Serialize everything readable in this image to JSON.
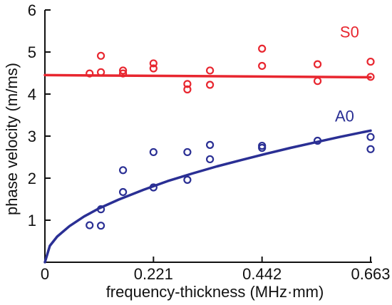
{
  "chart_data": {
    "type": "scatter",
    "title": "",
    "xlabel": "frequency-thickness (MHz·mm)",
    "ylabel": "phase velocity (m/ms)",
    "xlim": [
      0,
      0.663
    ],
    "ylim": [
      0,
      6
    ],
    "x_ticks": [
      "0",
      "0.221",
      "0.442",
      "0.663"
    ],
    "y_ticks": [
      "1",
      "2",
      "3",
      "4",
      "5",
      "6"
    ],
    "grid": false,
    "series": [
      {
        "name": "S0",
        "color": "#e8262f",
        "points": [
          {
            "x": 0.091,
            "y": 4.49
          },
          {
            "x": 0.114,
            "y": 4.91
          },
          {
            "x": 0.114,
            "y": 4.52
          },
          {
            "x": 0.159,
            "y": 4.56
          },
          {
            "x": 0.159,
            "y": 4.49
          },
          {
            "x": 0.221,
            "y": 4.73
          },
          {
            "x": 0.221,
            "y": 4.61
          },
          {
            "x": 0.29,
            "y": 4.24
          },
          {
            "x": 0.29,
            "y": 4.11
          },
          {
            "x": 0.336,
            "y": 4.56
          },
          {
            "x": 0.336,
            "y": 4.22
          },
          {
            "x": 0.442,
            "y": 5.08
          },
          {
            "x": 0.442,
            "y": 4.67
          },
          {
            "x": 0.555,
            "y": 4.71
          },
          {
            "x": 0.555,
            "y": 4.31
          },
          {
            "x": 0.663,
            "y": 4.77
          },
          {
            "x": 0.663,
            "y": 4.41
          }
        ],
        "fit": [
          {
            "x": 0.0,
            "y": 4.45
          },
          {
            "x": 0.663,
            "y": 4.4
          }
        ]
      },
      {
        "name": "A0",
        "color": "#2a2f94",
        "points": [
          {
            "x": 0.091,
            "y": 0.88
          },
          {
            "x": 0.114,
            "y": 1.26
          },
          {
            "x": 0.114,
            "y": 0.87
          },
          {
            "x": 0.159,
            "y": 2.19
          },
          {
            "x": 0.159,
            "y": 1.67
          },
          {
            "x": 0.221,
            "y": 2.62
          },
          {
            "x": 0.221,
            "y": 1.78
          },
          {
            "x": 0.29,
            "y": 2.62
          },
          {
            "x": 0.29,
            "y": 1.96
          },
          {
            "x": 0.336,
            "y": 2.79
          },
          {
            "x": 0.336,
            "y": 2.45
          },
          {
            "x": 0.442,
            "y": 2.77
          },
          {
            "x": 0.442,
            "y": 2.72
          },
          {
            "x": 0.555,
            "y": 2.89
          },
          {
            "x": 0.663,
            "y": 2.98
          },
          {
            "x": 0.663,
            "y": 2.69
          }
        ],
        "fit": [
          {
            "x": 0.0,
            "y": 0.0
          },
          {
            "x": 0.01,
            "y": 0.39
          },
          {
            "x": 0.025,
            "y": 0.61
          },
          {
            "x": 0.05,
            "y": 0.86
          },
          {
            "x": 0.08,
            "y": 1.09
          },
          {
            "x": 0.11,
            "y": 1.28
          },
          {
            "x": 0.15,
            "y": 1.49
          },
          {
            "x": 0.2,
            "y": 1.72
          },
          {
            "x": 0.25,
            "y": 1.93
          },
          {
            "x": 0.3,
            "y": 2.11
          },
          {
            "x": 0.35,
            "y": 2.28
          },
          {
            "x": 0.4,
            "y": 2.43
          },
          {
            "x": 0.45,
            "y": 2.58
          },
          {
            "x": 0.5,
            "y": 2.72
          },
          {
            "x": 0.55,
            "y": 2.85
          },
          {
            "x": 0.6,
            "y": 2.98
          },
          {
            "x": 0.65,
            "y": 3.1
          },
          {
            "x": 0.663,
            "y": 3.13
          }
        ]
      }
    ]
  }
}
